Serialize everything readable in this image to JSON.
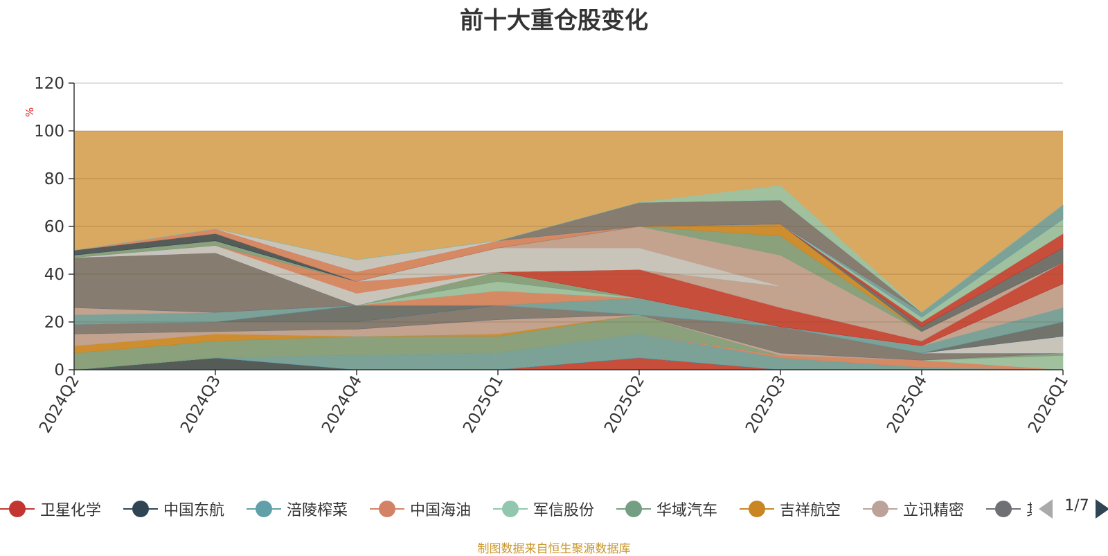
{
  "chart_data": {
    "type": "area",
    "title": "前十大重仓股变化",
    "ylabel": "%",
    "ylim": [
      0,
      120
    ],
    "yticks": [
      0,
      20,
      40,
      60,
      80,
      100,
      120
    ],
    "categories": [
      "2024Q2",
      "2024Q3",
      "2024Q4",
      "2025Q1",
      "2025Q2",
      "2025Q3",
      "2025Q4",
      "2026Q1"
    ],
    "grid": true,
    "stacked": true,
    "background_band": {
      "from": 0,
      "to": 100,
      "color": "#d9a861"
    },
    "series": [
      {
        "name": "卫星化学",
        "color": "#c23531",
        "values": [
          0,
          0,
          0,
          0,
          5,
          0,
          0,
          0
        ]
      },
      {
        "name": "中国东航",
        "color": "#2f4554",
        "values": [
          0,
          5,
          0,
          0,
          0,
          0,
          0,
          0
        ]
      },
      {
        "name": "涪陵榨菜",
        "color": "#61a0a8",
        "values": [
          0,
          0,
          6,
          7,
          10,
          5,
          1,
          0
        ]
      },
      {
        "name": "中国海油",
        "color": "#d48265",
        "values": [
          0,
          0,
          0,
          0,
          0,
          1,
          3,
          0
        ]
      },
      {
        "name": "军信股份",
        "color": "#91c7ae",
        "values": [
          0,
          0,
          0,
          0,
          0,
          0,
          0,
          6
        ]
      },
      {
        "name": "华域汽车",
        "color": "#749f83",
        "values": [
          7,
          7,
          8,
          7,
          8,
          0,
          0,
          1
        ]
      },
      {
        "name": "吉祥航空",
        "color": "#ca8622",
        "values": [
          3,
          3,
          0,
          1,
          0,
          0,
          0,
          0
        ]
      },
      {
        "name": "立讯精密",
        "color": "#bda29a",
        "values": [
          5,
          1,
          3,
          6,
          0,
          1,
          0,
          0
        ]
      },
      {
        "name": "",
        "color": "#6e7074",
        "values": [
          4,
          4,
          3,
          6,
          0,
          11,
          3,
          0
        ]
      },
      {
        "name": "",
        "color": "#c4ccd3",
        "values": [
          0,
          0,
          0,
          0,
          0,
          0,
          0,
          7
        ]
      },
      {
        "name": "",
        "color": "#546570",
        "values": [
          0,
          0,
          7,
          0,
          0,
          0,
          0,
          6
        ]
      },
      {
        "name": "",
        "color": "#61a0a8",
        "values": [
          4,
          4,
          0,
          0,
          7,
          0,
          3,
          6
        ]
      },
      {
        "name": "",
        "color": "#bda29a",
        "values": [
          3,
          0,
          0,
          0,
          0,
          0,
          0,
          10
        ]
      },
      {
        "name": "",
        "color": "#6e7074",
        "values": [
          21,
          25,
          0,
          0,
          0,
          0,
          0,
          0
        ]
      },
      {
        "name": "",
        "color": "#d48265",
        "values": [
          0,
          0,
          0,
          6,
          0,
          0,
          0,
          0
        ]
      },
      {
        "name": "",
        "color": "#91c7ae",
        "values": [
          0,
          0,
          0,
          4,
          0,
          0,
          0,
          0
        ]
      },
      {
        "name": "",
        "color": "#749f83",
        "values": [
          0,
          0,
          0,
          4,
          0,
          0,
          0,
          0
        ]
      },
      {
        "name": "",
        "color": "#c23531",
        "values": [
          0,
          0,
          0,
          0,
          12,
          8,
          2,
          9
        ]
      },
      {
        "name": "",
        "color": "#bda29a",
        "values": [
          0,
          0,
          0,
          0,
          0,
          9,
          1,
          0
        ]
      },
      {
        "name": "",
        "color": "#c4ccd3",
        "values": [
          0,
          3,
          5,
          0,
          0,
          0,
          0,
          0
        ]
      },
      {
        "name": "",
        "color": "#d48265",
        "values": [
          0,
          0,
          5,
          0,
          0,
          0,
          0,
          0
        ]
      },
      {
        "name": "",
        "color": "#749f83",
        "values": [
          1,
          2,
          0,
          0,
          0,
          0,
          0,
          0
        ]
      },
      {
        "name": "",
        "color": "#c4ccd3",
        "values": [
          0,
          0,
          0,
          10,
          9,
          0,
          0,
          0
        ]
      },
      {
        "name": "",
        "color": "#bda29a",
        "values": [
          0,
          0,
          0,
          0,
          9,
          13,
          3,
          0
        ]
      },
      {
        "name": "",
        "color": "#749f83",
        "values": [
          0,
          0,
          0,
          0,
          0,
          8,
          0,
          0
        ]
      },
      {
        "name": "",
        "color": "#ca8622",
        "values": [
          0,
          0,
          0,
          0,
          0,
          5,
          0,
          0
        ]
      },
      {
        "name": "",
        "color": "#546570",
        "values": [
          0,
          0,
          0,
          0,
          0,
          0,
          2,
          6
        ]
      },
      {
        "name": "",
        "color": "#c23531",
        "values": [
          0,
          0,
          0,
          0,
          0,
          0,
          2,
          6
        ]
      },
      {
        "name": "",
        "color": "#91c7ae",
        "values": [
          0,
          0,
          0,
          0,
          0,
          0,
          2,
          6
        ]
      },
      {
        "name": "",
        "color": "#61a0a8",
        "values": [
          0,
          0,
          0,
          0,
          0,
          0,
          2,
          6
        ]
      },
      {
        "name": "",
        "color": "#2f4554",
        "values": [
          2,
          3,
          0,
          0,
          0,
          0,
          0,
          0
        ]
      },
      {
        "name": "",
        "color": "#d48265",
        "values": [
          0,
          2,
          4,
          3,
          0,
          0,
          0,
          0
        ]
      },
      {
        "name": "",
        "color": "#c4ccd3",
        "values": [
          0,
          0,
          5,
          0,
          0,
          0,
          0,
          0
        ]
      },
      {
        "name": "",
        "color": "#6e7074",
        "values": [
          0,
          0,
          0,
          0,
          10,
          10,
          0,
          0
        ]
      },
      {
        "name": "",
        "color": "#91c7ae",
        "values": [
          0,
          0,
          0,
          0,
          0,
          6,
          0,
          0
        ]
      }
    ]
  },
  "legend": {
    "items": [
      {
        "name": "卫星化学",
        "color": "#c23531"
      },
      {
        "name": "中国东航",
        "color": "#2f4554"
      },
      {
        "name": "涪陵榨菜",
        "color": "#61a0a8"
      },
      {
        "name": "中国海油",
        "color": "#d48265"
      },
      {
        "name": "军信股份",
        "color": "#91c7ae"
      },
      {
        "name": "华域汽车",
        "color": "#749f83"
      },
      {
        "name": "吉祥航空",
        "color": "#ca8622"
      },
      {
        "name": "立讯精密",
        "color": "#bda29a"
      },
      {
        "name": "其",
        "color": "#6e7074"
      }
    ],
    "page": "1/7"
  },
  "source": "制图数据来自恒生聚源数据库"
}
